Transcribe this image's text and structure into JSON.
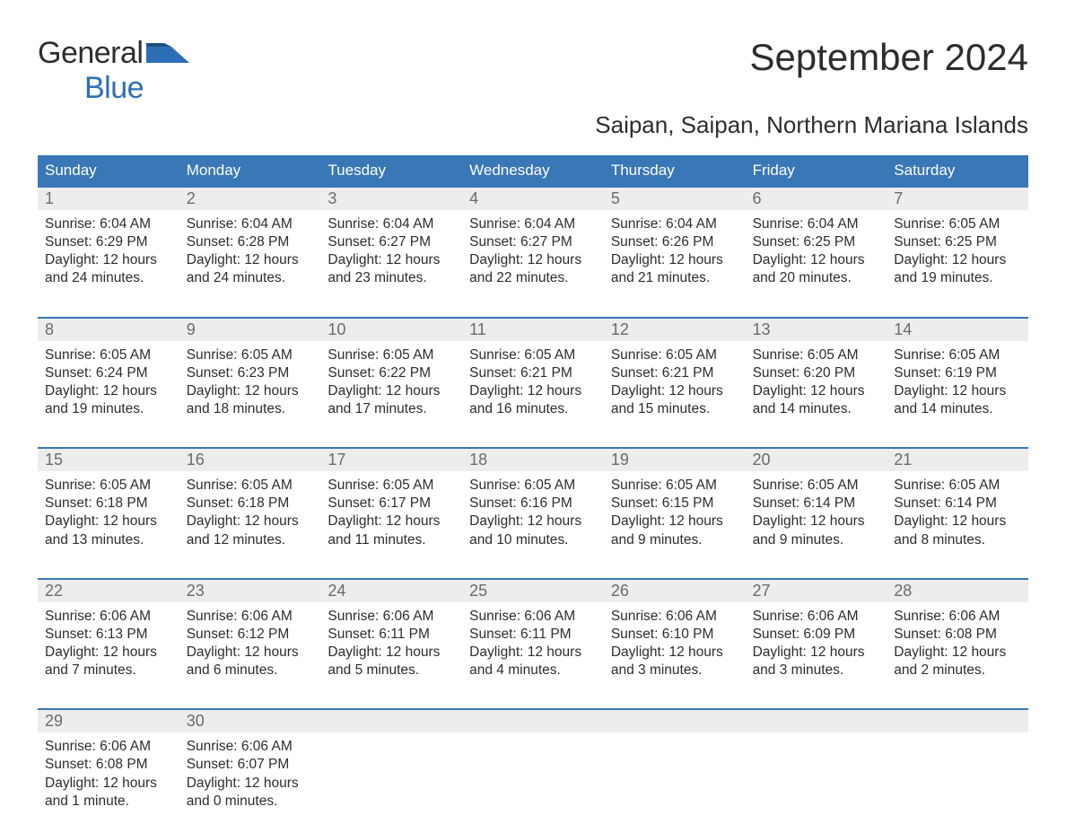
{
  "logo": {
    "text1": "General",
    "text2": "Blue"
  },
  "title": "September 2024",
  "location": "Saipan, Saipan, Northern Mariana Islands",
  "colors": {
    "header_bg": "#3a77b6",
    "header_text": "#ffffff",
    "daynum_bg": "#ededed",
    "daynum_text": "#6b6b6b",
    "body_text": "#2d2d2d",
    "week_border": "#3a77b6",
    "logo_blue": "#2d6fb6",
    "page_bg": "#ffffff"
  },
  "layout": {
    "columns": 7,
    "font_family": "Arial"
  },
  "weekdays": [
    "Sunday",
    "Monday",
    "Tuesday",
    "Wednesday",
    "Thursday",
    "Friday",
    "Saturday"
  ],
  "weeks": [
    {
      "days": [
        {
          "num": "1",
          "sunrise": "Sunrise: 6:04 AM",
          "sunset": "Sunset: 6:29 PM",
          "day1": "Daylight: 12 hours",
          "day2": "and 24 minutes."
        },
        {
          "num": "2",
          "sunrise": "Sunrise: 6:04 AM",
          "sunset": "Sunset: 6:28 PM",
          "day1": "Daylight: 12 hours",
          "day2": "and 24 minutes."
        },
        {
          "num": "3",
          "sunrise": "Sunrise: 6:04 AM",
          "sunset": "Sunset: 6:27 PM",
          "day1": "Daylight: 12 hours",
          "day2": "and 23 minutes."
        },
        {
          "num": "4",
          "sunrise": "Sunrise: 6:04 AM",
          "sunset": "Sunset: 6:27 PM",
          "day1": "Daylight: 12 hours",
          "day2": "and 22 minutes."
        },
        {
          "num": "5",
          "sunrise": "Sunrise: 6:04 AM",
          "sunset": "Sunset: 6:26 PM",
          "day1": "Daylight: 12 hours",
          "day2": "and 21 minutes."
        },
        {
          "num": "6",
          "sunrise": "Sunrise: 6:04 AM",
          "sunset": "Sunset: 6:25 PM",
          "day1": "Daylight: 12 hours",
          "day2": "and 20 minutes."
        },
        {
          "num": "7",
          "sunrise": "Sunrise: 6:05 AM",
          "sunset": "Sunset: 6:25 PM",
          "day1": "Daylight: 12 hours",
          "day2": "and 19 minutes."
        }
      ]
    },
    {
      "days": [
        {
          "num": "8",
          "sunrise": "Sunrise: 6:05 AM",
          "sunset": "Sunset: 6:24 PM",
          "day1": "Daylight: 12 hours",
          "day2": "and 19 minutes."
        },
        {
          "num": "9",
          "sunrise": "Sunrise: 6:05 AM",
          "sunset": "Sunset: 6:23 PM",
          "day1": "Daylight: 12 hours",
          "day2": "and 18 minutes."
        },
        {
          "num": "10",
          "sunrise": "Sunrise: 6:05 AM",
          "sunset": "Sunset: 6:22 PM",
          "day1": "Daylight: 12 hours",
          "day2": "and 17 minutes."
        },
        {
          "num": "11",
          "sunrise": "Sunrise: 6:05 AM",
          "sunset": "Sunset: 6:21 PM",
          "day1": "Daylight: 12 hours",
          "day2": "and 16 minutes."
        },
        {
          "num": "12",
          "sunrise": "Sunrise: 6:05 AM",
          "sunset": "Sunset: 6:21 PM",
          "day1": "Daylight: 12 hours",
          "day2": "and 15 minutes."
        },
        {
          "num": "13",
          "sunrise": "Sunrise: 6:05 AM",
          "sunset": "Sunset: 6:20 PM",
          "day1": "Daylight: 12 hours",
          "day2": "and 14 minutes."
        },
        {
          "num": "14",
          "sunrise": "Sunrise: 6:05 AM",
          "sunset": "Sunset: 6:19 PM",
          "day1": "Daylight: 12 hours",
          "day2": "and 14 minutes."
        }
      ]
    },
    {
      "days": [
        {
          "num": "15",
          "sunrise": "Sunrise: 6:05 AM",
          "sunset": "Sunset: 6:18 PM",
          "day1": "Daylight: 12 hours",
          "day2": "and 13 minutes."
        },
        {
          "num": "16",
          "sunrise": "Sunrise: 6:05 AM",
          "sunset": "Sunset: 6:18 PM",
          "day1": "Daylight: 12 hours",
          "day2": "and 12 minutes."
        },
        {
          "num": "17",
          "sunrise": "Sunrise: 6:05 AM",
          "sunset": "Sunset: 6:17 PM",
          "day1": "Daylight: 12 hours",
          "day2": "and 11 minutes."
        },
        {
          "num": "18",
          "sunrise": "Sunrise: 6:05 AM",
          "sunset": "Sunset: 6:16 PM",
          "day1": "Daylight: 12 hours",
          "day2": "and 10 minutes."
        },
        {
          "num": "19",
          "sunrise": "Sunrise: 6:05 AM",
          "sunset": "Sunset: 6:15 PM",
          "day1": "Daylight: 12 hours",
          "day2": "and 9 minutes."
        },
        {
          "num": "20",
          "sunrise": "Sunrise: 6:05 AM",
          "sunset": "Sunset: 6:14 PM",
          "day1": "Daylight: 12 hours",
          "day2": "and 9 minutes."
        },
        {
          "num": "21",
          "sunrise": "Sunrise: 6:05 AM",
          "sunset": "Sunset: 6:14 PM",
          "day1": "Daylight: 12 hours",
          "day2": "and 8 minutes."
        }
      ]
    },
    {
      "days": [
        {
          "num": "22",
          "sunrise": "Sunrise: 6:06 AM",
          "sunset": "Sunset: 6:13 PM",
          "day1": "Daylight: 12 hours",
          "day2": "and 7 minutes."
        },
        {
          "num": "23",
          "sunrise": "Sunrise: 6:06 AM",
          "sunset": "Sunset: 6:12 PM",
          "day1": "Daylight: 12 hours",
          "day2": "and 6 minutes."
        },
        {
          "num": "24",
          "sunrise": "Sunrise: 6:06 AM",
          "sunset": "Sunset: 6:11 PM",
          "day1": "Daylight: 12 hours",
          "day2": "and 5 minutes."
        },
        {
          "num": "25",
          "sunrise": "Sunrise: 6:06 AM",
          "sunset": "Sunset: 6:11 PM",
          "day1": "Daylight: 12 hours",
          "day2": "and 4 minutes."
        },
        {
          "num": "26",
          "sunrise": "Sunrise: 6:06 AM",
          "sunset": "Sunset: 6:10 PM",
          "day1": "Daylight: 12 hours",
          "day2": "and 3 minutes."
        },
        {
          "num": "27",
          "sunrise": "Sunrise: 6:06 AM",
          "sunset": "Sunset: 6:09 PM",
          "day1": "Daylight: 12 hours",
          "day2": "and 3 minutes."
        },
        {
          "num": "28",
          "sunrise": "Sunrise: 6:06 AM",
          "sunset": "Sunset: 6:08 PM",
          "day1": "Daylight: 12 hours",
          "day2": "and 2 minutes."
        }
      ]
    },
    {
      "days": [
        {
          "num": "29",
          "sunrise": "Sunrise: 6:06 AM",
          "sunset": "Sunset: 6:08 PM",
          "day1": "Daylight: 12 hours",
          "day2": "and 1 minute."
        },
        {
          "num": "30",
          "sunrise": "Sunrise: 6:06 AM",
          "sunset": "Sunset: 6:07 PM",
          "day1": "Daylight: 12 hours",
          "day2": "and 0 minutes."
        },
        {
          "empty": true
        },
        {
          "empty": true
        },
        {
          "empty": true
        },
        {
          "empty": true
        },
        {
          "empty": true
        }
      ]
    }
  ]
}
